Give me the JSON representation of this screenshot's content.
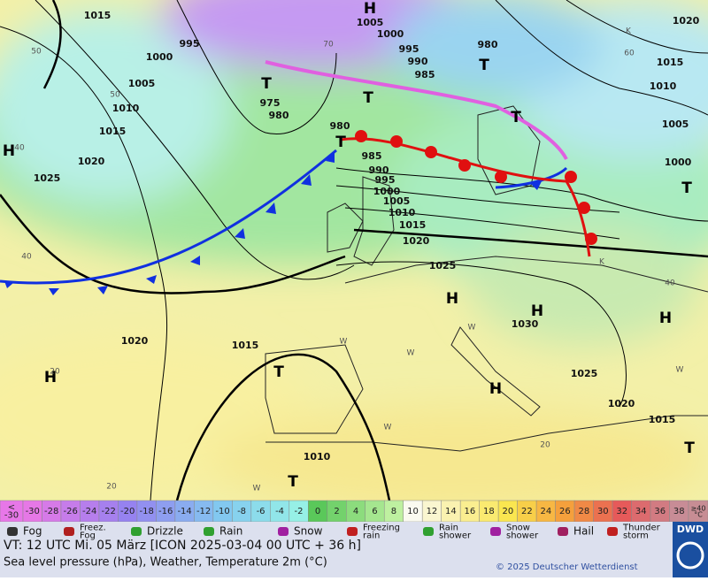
{
  "map": {
    "pressure_labels": [
      "1015",
      "1005",
      "1000",
      "995",
      "1000",
      "995",
      "990",
      "985",
      "980",
      "1005",
      "1010",
      "1015",
      "975",
      "980",
      "980",
      "1020",
      "1025",
      "985",
      "990",
      "995",
      "1000",
      "1005",
      "1010",
      "1015",
      "1020",
      "1025",
      "1020",
      "1015",
      "1010",
      "1005",
      "1000",
      "1030",
      "1025",
      "1020",
      "1015",
      "1020",
      "1015",
      "1010"
    ],
    "centers": [
      "H",
      "H",
      "H",
      "H",
      "H",
      "H",
      "H",
      "T",
      "T",
      "T",
      "T",
      "T",
      "T",
      "T",
      "T",
      "T"
    ],
    "small_labels": [
      "40",
      "50",
      "50",
      "40",
      "20",
      "20",
      "20",
      "40",
      "60",
      "70",
      "W",
      "W",
      "W",
      "W",
      "W",
      "W",
      "K",
      "K"
    ]
  },
  "temperature_legend": {
    "low_label": "<\n-30",
    "values": [
      -30,
      -28,
      -26,
      -24,
      -22,
      -20,
      -18,
      -16,
      -14,
      -12,
      -10,
      -8,
      -6,
      -4,
      -2,
      0,
      2,
      4,
      6,
      8,
      10,
      12,
      14,
      16,
      18,
      20,
      22,
      24,
      26,
      28,
      30,
      32,
      34,
      36,
      38
    ],
    "high_label": "≥40\n°C"
  },
  "weather_legend": [
    "Fog",
    "Freez.\nFog",
    "Drizzle",
    "Rain",
    "Snow",
    "Freezing\nrain",
    "Rain\nshower",
    "Snow\nshower",
    "Hail",
    "Thunder\nstorm"
  ],
  "footer": {
    "valid_time": "VT: 12 UTC Mi.  05 März [ICON 2025-03-04  00 UTC + 36 h]",
    "description": "Sea level pressure (hPa), Weather, Temperature 2m (°C)",
    "copyright": "© 2025 Deutscher Wetterdienst",
    "logo": "DWD"
  }
}
